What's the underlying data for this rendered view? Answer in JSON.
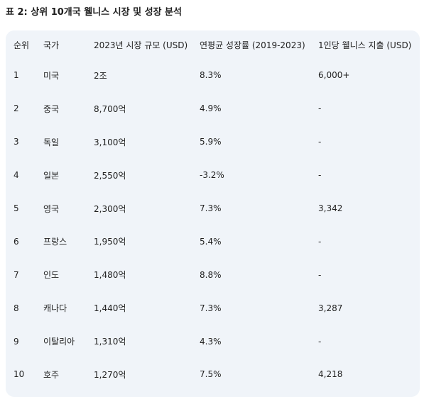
{
  "caption": "표 2: 상위 10개국 웰니스 시장 및 성장 분석",
  "table": {
    "headers": [
      "순위",
      "국가",
      "2023년 시장 규모 (USD)",
      "연평균 성장률 (2019-2023)",
      "1인당 웰니스 지출 (USD)"
    ],
    "rows": [
      [
        "1",
        "미국",
        "2조",
        "8.3%",
        "6,000+"
      ],
      [
        "2",
        "중국",
        "8,700억",
        "4.9%",
        "-"
      ],
      [
        "3",
        "독일",
        "3,100억",
        "5.9%",
        "-"
      ],
      [
        "4",
        "일본",
        "2,550억",
        "-3.2%",
        "-"
      ],
      [
        "5",
        "영국",
        "2,300억",
        "7.3%",
        "3,342"
      ],
      [
        "6",
        "프랑스",
        "1,950억",
        "5.4%",
        "-"
      ],
      [
        "7",
        "인도",
        "1,480억",
        "8.8%",
        "-"
      ],
      [
        "8",
        "캐나다",
        "1,440억",
        "7.3%",
        "3,287"
      ],
      [
        "9",
        "이탈리아",
        "1,310억",
        "4.3%",
        "-"
      ],
      [
        "10",
        "호주",
        "1,270억",
        "7.5%",
        "4,218"
      ]
    ]
  }
}
